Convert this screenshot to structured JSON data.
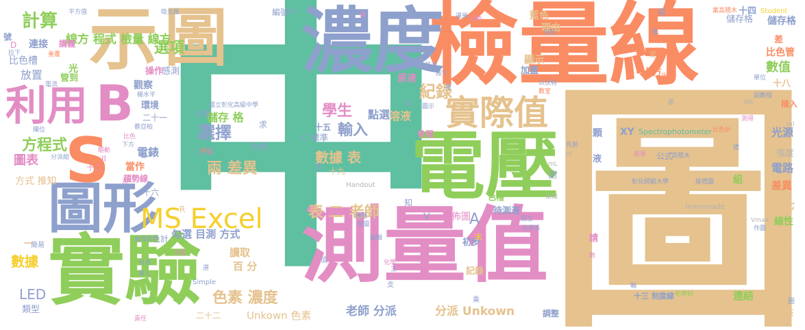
{
  "colors": {
    "green": "#8fce5a",
    "teal": "#5fbfa1",
    "orange": "#fa8c63",
    "blue": "#8ea0cc",
    "pink": "#e38dc5",
    "tan": "#e5c28e",
    "yellow": "#f5cf2c",
    "lightgray": "#b3b3b3"
  },
  "words": [
    {
      "text": "中"
    },
    {
      "text": "圖"
    },
    {
      "text": "檢量線"
    },
    {
      "text": "濃度"
    },
    {
      "text": "示"
    },
    {
      "text": "圖"
    },
    {
      "text": "測量值"
    },
    {
      "text": "實驗"
    },
    {
      "text": "電壓"
    },
    {
      "text": "圖形"
    },
    {
      "text": "S"
    },
    {
      "text": "B"
    },
    {
      "text": "利用"
    },
    {
      "text": "MS Excel"
    },
    {
      "text": "實際值"
    },
    {
      "text": "紀錄"
    },
    {
      "text": "選項"
    },
    {
      "text": "計算"
    },
    {
      "text": "線方 程式 檢量 線方"
    },
    {
      "text": "輸入"
    },
    {
      "text": "學生"
    },
    {
      "text": "點選"
    },
    {
      "text": "選擇"
    },
    {
      "text": "儲存 格"
    },
    {
      "text": "兩 差異"
    },
    {
      "text": "數據 表"
    },
    {
      "text": "表 二 老師"
    },
    {
      "text": "方程式"
    },
    {
      "text": "圖表"
    },
    {
      "text": "電錶"
    },
    {
      "text": "數據"
    },
    {
      "text": "LED"
    },
    {
      "text": "色素 濃度"
    },
    {
      "text": "老師 分派"
    },
    {
      "text": "分派 Unkown"
    },
    {
      "text": "Unkown 色素"
    },
    {
      "text": "勾選 目測 方式"
    },
    {
      "text": "讀取"
    },
    {
      "text": "百 分"
    },
    {
      "text": "十五"
    },
    {
      "text": "C 標準"
    },
    {
      "text": "十九"
    },
    {
      "text": "溶液"
    },
    {
      "text": "參閱"
    },
    {
      "text": "散佈圖"
    },
    {
      "text": "待測液"
    },
    {
      "text": "A"
    },
    {
      "text": "V"
    },
    {
      "text": "XY"
    },
    {
      "text": "Spectrophotometer"
    },
    {
      "text": "公式"
    },
    {
      "text": "電路"
    },
    {
      "text": "差異"
    },
    {
      "text": "十七"
    },
    {
      "text": "線性"
    },
    {
      "text": "名稱"
    },
    {
      "text": "二十"
    },
    {
      "text": "連結"
    },
    {
      "text": "提供"
    },
    {
      "text": "光源"
    },
    {
      "text": "強度"
    },
    {
      "text": "數值"
    },
    {
      "text": "比色管"
    },
    {
      "text": "儲存格"
    },
    {
      "text": "十八"
    },
    {
      "text": "插入"
    },
    {
      "text": "十四"
    },
    {
      "text": "藍色"
    },
    {
      "text": "理由"
    },
    {
      "text": "顯示"
    },
    {
      "text": "加蓋"
    },
    {
      "text": "上方"
    },
    {
      "text": "原液"
    },
    {
      "text": "輸入"
    },
    {
      "text": "色槽"
    },
    {
      "text": "初步"
    },
    {
      "text": "記錄"
    },
    {
      "text": "調整"
    },
    {
      "text": "觀察"
    },
    {
      "text": "環境"
    },
    {
      "text": "操作"
    },
    {
      "text": "感測"
    },
    {
      "text": "放置"
    },
    {
      "text": "比色槽"
    },
    {
      "text": "連接"
    },
    {
      "text": "講義"
    },
    {
      "text": "管到"
    },
    {
      "text": "二十一"
    },
    {
      "text": "方式 推知"
    },
    {
      "text": "當作"
    },
    {
      "text": "趨勢線"
    },
    {
      "text": "十六"
    },
    {
      "text": "十二"
    },
    {
      "text": "類型"
    },
    {
      "text": "色計"
    },
    {
      "text": "簡易"
    },
    {
      "text": "編號"
    },
    {
      "text": "Homemade"
    },
    {
      "text": "Handout"
    },
    {
      "text": "Student"
    },
    {
      "text": "MS"
    },
    {
      "text": "ml"
    },
    {
      "text": "mL"
    },
    {
      "text": "Vmax"
    },
    {
      "text": "Simple"
    },
    {
      "text": "二十二"
    },
    {
      "text": "十三 刻度線"
    },
    {
      "text": "組"
    },
    {
      "text": "液"
    },
    {
      "text": "顆"
    },
    {
      "text": "測"
    },
    {
      "text": "請"
    },
    {
      "text": "知"
    },
    {
      "text": "一"
    },
    {
      "text": "步"
    },
    {
      "text": "求"
    },
    {
      "text": "光"
    },
    {
      "text": "R"
    },
    {
      "text": "D"
    },
    {
      "text": "色管"
    },
    {
      "text": "步驟"
    },
    {
      "text": "座標"
    },
    {
      "text": "國立彰化高級中學"
    },
    {
      "text": "彰化師範大學"
    },
    {
      "text": "高積木"
    },
    {
      "text": "表單"
    },
    {
      "text": "化學科"
    },
    {
      "text": "比色計"
    },
    {
      "text": "業高積木"
    },
    {
      "text": "儲存格"
    },
    {
      "text": "水"
    },
    {
      "text": "差"
    },
    {
      "text": "兩"
    },
    {
      "text": "定"
    },
    {
      "text": "平方值"
    },
    {
      "text": "吸光度"
    },
    {
      "text": "選單"
    },
    {
      "text": "活動"
    },
    {
      "text": "量測"
    },
    {
      "text": "按下"
    },
    {
      "text": "自製"
    },
    {
      "text": "以伏特"
    },
    {
      "text": "教室"
    },
    {
      "text": "副教授"
    },
    {
      "text": "單位"
    },
    {
      "text": "測得"
    },
    {
      "text": "蔡亞柏"
    },
    {
      "text": "分派給"
    },
    {
      "text": "處理表"
    },
    {
      "text": "座標圖"
    },
    {
      "text": "流程圖"
    },
    {
      "text": "化學系"
    },
    {
      "text": "作圖"
    },
    {
      "text": "號"
    },
    {
      "text": "拉下"
    },
    {
      "text": "重覆"
    },
    {
      "text": "電流"
    },
    {
      "text": "楊水平"
    },
    {
      "text": "欄位"
    },
    {
      "text": "驅動"
    },
    {
      "text": "予以"
    },
    {
      "text": "刻度"
    },
    {
      "text": "數位"
    },
    {
      "text": "下方"
    },
    {
      "text": "比色"
    },
    {
      "text": "先前"
    },
    {
      "text": "未知"
    },
    {
      "text": "標題"
    },
    {
      "text": "精靈"
    },
    {
      "text": "國立"
    },
    {
      "text": "編輯"
    },
    {
      "text": "化學"
    },
    {
      "text": "乘"
    },
    {
      "text": "支"
    },
    {
      "text": "值"
    },
    {
      "text": "光電"
    },
    {
      "text": "合適"
    },
    {
      "text": "匯入"
    },
    {
      "text": "責任"
    },
    {
      "text": "次"
    },
    {
      "text": "右"
    },
    {
      "text": "約"
    },
    {
      "text": "讀"
    },
    {
      "text": "軸"
    },
    {
      "text": "圖示"
    },
    {
      "text": "座"
    },
    {
      "text": "裡"
    },
    {
      "text": "末"
    },
    {
      "text": "數"
    },
    {
      "text": "標"
    },
    {
      "text": "圈"
    },
    {
      "text": "示"
    },
    {
      "text": "張"
    },
    {
      "text": "三"
    },
    {
      "text": "選"
    },
    {
      "text": "II"
    },
    {
      "text": "IV"
    }
  ]
}
